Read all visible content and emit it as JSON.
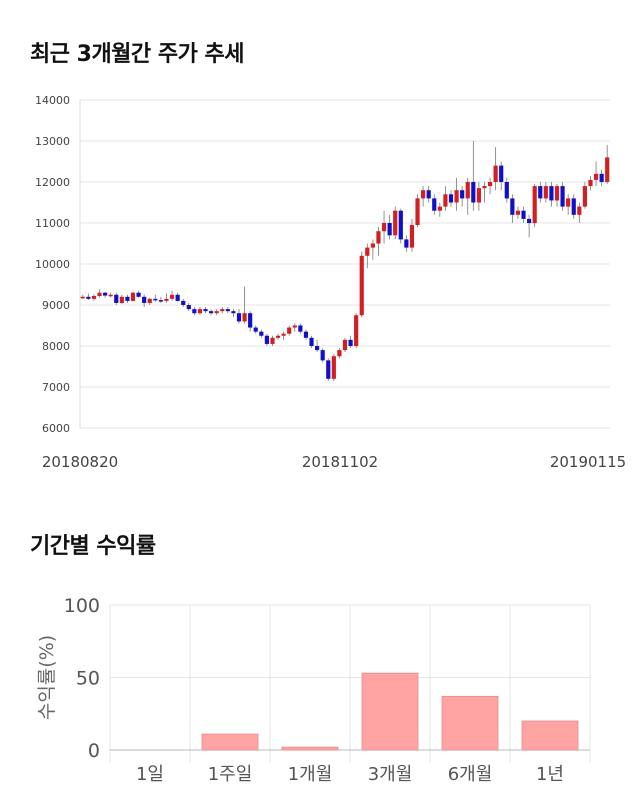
{
  "sections": {
    "price_title": "최근 3개월간 주가 추세",
    "return_title": "기간별 수익률"
  },
  "chart_data": [
    {
      "type": "candlestick",
      "title": "최근 3개월간 주가 추세",
      "ylim": [
        6000,
        14000
      ],
      "yticks": [
        "14000",
        "13000",
        "12000",
        "11000",
        "10000",
        "9000",
        "8000",
        "7000",
        "6000"
      ],
      "xticks": [
        "20180820",
        "20181102",
        "20190115"
      ],
      "colors": {
        "up": "#d21f1f",
        "down": "#1010c8",
        "grid": "#e6e6e6"
      },
      "candles": [
        [
          9200,
          9250,
          9150,
          9200
        ],
        [
          9200,
          9280,
          9120,
          9150
        ],
        [
          9150,
          9260,
          9100,
          9220
        ],
        [
          9220,
          9380,
          9180,
          9300
        ],
        [
          9300,
          9320,
          9180,
          9230
        ],
        [
          9230,
          9300,
          9180,
          9250
        ],
        [
          9250,
          9300,
          9000,
          9050
        ],
        [
          9050,
          9250,
          9020,
          9200
        ],
        [
          9200,
          9250,
          9050,
          9100
        ],
        [
          9100,
          9320,
          9080,
          9300
        ],
        [
          9300,
          9350,
          9180,
          9200
        ],
        [
          9200,
          9260,
          8950,
          9050
        ],
        [
          9050,
          9180,
          9000,
          9150
        ],
        [
          9150,
          9250,
          9080,
          9120
        ],
        [
          9120,
          9200,
          9050,
          9100
        ],
        [
          9100,
          9280,
          9050,
          9150
        ],
        [
          9150,
          9350,
          9100,
          9250
        ],
        [
          9250,
          9300,
          9080,
          9100
        ],
        [
          9100,
          9150,
          8950,
          9000
        ],
        [
          9000,
          9050,
          8850,
          8900
        ],
        [
          8900,
          8950,
          8750,
          8800
        ],
        [
          8800,
          8950,
          8750,
          8900
        ],
        [
          8900,
          8950,
          8800,
          8850
        ],
        [
          8850,
          8900,
          8750,
          8800
        ],
        [
          8800,
          8900,
          8750,
          8850
        ],
        [
          8850,
          8950,
          8800,
          8900
        ],
        [
          8900,
          8950,
          8800,
          8850
        ],
        [
          8850,
          8900,
          8700,
          8800
        ],
        [
          8800,
          8900,
          8550,
          8600
        ],
        [
          8600,
          9450,
          8550,
          8800
        ],
        [
          8800,
          8850,
          8350,
          8450
        ],
        [
          8450,
          8500,
          8300,
          8350
        ],
        [
          8350,
          8400,
          8200,
          8250
        ],
        [
          8250,
          8300,
          8000,
          8050
        ],
        [
          8050,
          8250,
          8000,
          8200
        ],
        [
          8200,
          8300,
          8150,
          8250
        ],
        [
          8250,
          8350,
          8150,
          8300
        ],
        [
          8300,
          8500,
          8250,
          8450
        ],
        [
          8450,
          8550,
          8350,
          8500
        ],
        [
          8500,
          8550,
          8300,
          8350
        ],
        [
          8350,
          8400,
          8150,
          8200
        ],
        [
          8200,
          8250,
          7950,
          8000
        ],
        [
          8000,
          8150,
          7850,
          7900
        ],
        [
          7900,
          7950,
          7600,
          7650
        ],
        [
          7650,
          7700,
          7150,
          7200
        ],
        [
          7200,
          7800,
          7150,
          7750
        ],
        [
          7750,
          7950,
          7700,
          7900
        ],
        [
          7900,
          8200,
          7850,
          8150
        ],
        [
          8150,
          8250,
          7950,
          8000
        ],
        [
          8000,
          8800,
          7950,
          8750
        ],
        [
          8750,
          10300,
          8700,
          10200
        ],
        [
          10200,
          10500,
          9900,
          10400
        ],
        [
          10400,
          10600,
          10100,
          10500
        ],
        [
          10500,
          10900,
          10200,
          10800
        ],
        [
          10800,
          11300,
          10500,
          11000
        ],
        [
          11000,
          11200,
          10600,
          10700
        ],
        [
          10700,
          11400,
          10600,
          11300
        ],
        [
          11300,
          11350,
          10500,
          10600
        ],
        [
          10600,
          10700,
          10300,
          10400
        ],
        [
          10400,
          11100,
          10300,
          10950
        ],
        [
          10950,
          11700,
          10900,
          11600
        ],
        [
          11600,
          11900,
          11400,
          11800
        ],
        [
          11800,
          11900,
          11500,
          11600
        ],
        [
          11600,
          11700,
          11200,
          11300
        ],
        [
          11300,
          11500,
          11150,
          11400
        ],
        [
          11400,
          11900,
          11300,
          11700
        ],
        [
          11700,
          11800,
          11400,
          11500
        ],
        [
          11500,
          12100,
          11300,
          11800
        ],
        [
          11800,
          11900,
          11400,
          11600
        ],
        [
          11600,
          12100,
          11200,
          12000
        ],
        [
          12000,
          13000,
          11300,
          11500
        ],
        [
          11500,
          12000,
          11300,
          11850
        ],
        [
          11850,
          12000,
          11500,
          11900
        ],
        [
          11900,
          12100,
          11700,
          12000
        ],
        [
          12000,
          12850,
          11800,
          12400
        ],
        [
          12400,
          12500,
          11800,
          12000
        ],
        [
          12000,
          12100,
          11500,
          11600
        ],
        [
          11600,
          11700,
          11000,
          11200
        ],
        [
          11200,
          11400,
          11100,
          11300
        ],
        [
          11300,
          11400,
          11000,
          11100
        ],
        [
          11100,
          11200,
          10650,
          11000
        ],
        [
          11000,
          11950,
          10900,
          11900
        ],
        [
          11900,
          12000,
          11500,
          11600
        ],
        [
          11600,
          12000,
          11500,
          11900
        ],
        [
          11900,
          12000,
          11400,
          11550
        ],
        [
          11550,
          11950,
          11400,
          11900
        ],
        [
          11900,
          12000,
          11300,
          11400
        ],
        [
          11400,
          11700,
          11200,
          11600
        ],
        [
          11600,
          11700,
          11100,
          11200
        ],
        [
          11200,
          11500,
          11000,
          11400
        ],
        [
          11400,
          12000,
          11350,
          11900
        ],
        [
          11900,
          12150,
          11800,
          12050
        ],
        [
          12050,
          12500,
          11900,
          12200
        ],
        [
          12200,
          12300,
          11900,
          12000
        ],
        [
          12000,
          12900,
          11950,
          12600
        ]
      ]
    },
    {
      "type": "bar",
      "title": "기간별 수익률",
      "ylabel": "수익률(%)",
      "ylim": [
        0,
        100
      ],
      "yticks": [
        "100",
        "50",
        "0"
      ],
      "categories": [
        "1일",
        "1주일",
        "1개월",
        "3개월",
        "6개월",
        "1년"
      ],
      "values": [
        0,
        11,
        2,
        53,
        37,
        20
      ],
      "colors": {
        "bar": "#ffa3a3",
        "bar_edge": "#e58c8c",
        "grid": "#e6e6e6"
      }
    }
  ]
}
